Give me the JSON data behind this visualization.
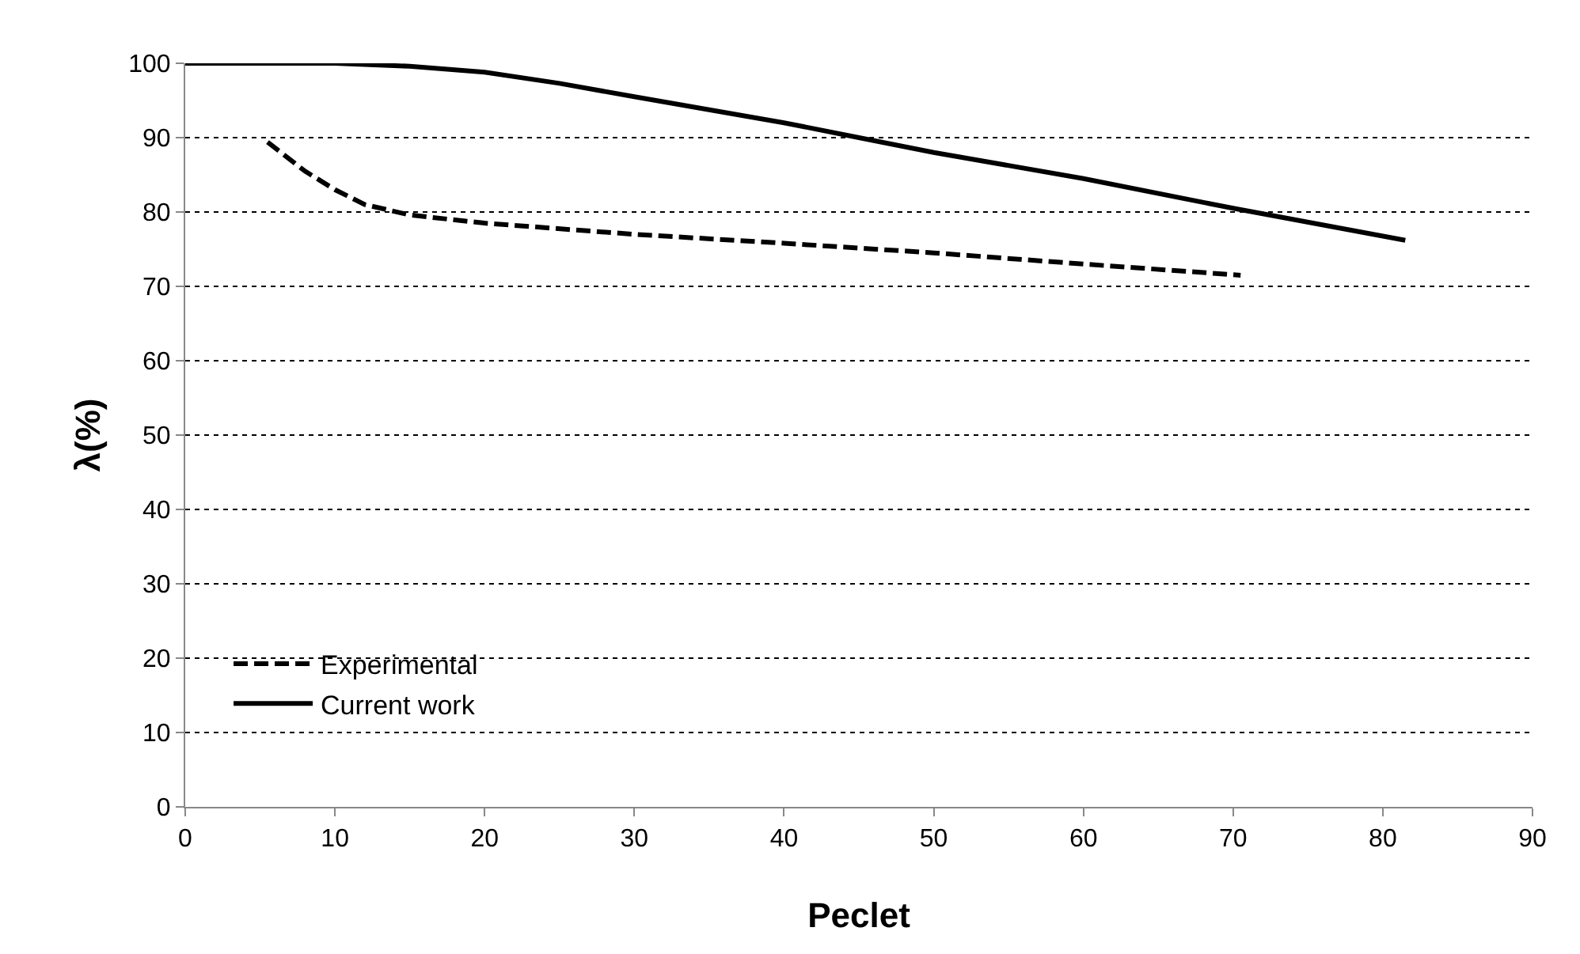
{
  "chart_data": {
    "type": "line",
    "xlabel": "Peclet",
    "ylabel": "λ(%)",
    "xlim": [
      0,
      90
    ],
    "xticks": [
      0,
      10,
      20,
      30,
      40,
      50,
      60,
      70,
      80,
      90
    ],
    "ylim": [
      0,
      100
    ],
    "yticks": [
      0,
      10,
      20,
      30,
      40,
      50,
      60,
      70,
      80,
      90,
      100
    ],
    "grid": "y",
    "legend": "bottom left",
    "marker": "none",
    "series": [
      {
        "name": "Experimental",
        "color": "#000000",
        "line_style": "dashed",
        "x": [
          5.5,
          8,
          10,
          12,
          15,
          20,
          30,
          40,
          50,
          60,
          70.5
        ],
        "values": [
          89.4,
          85.5,
          83,
          81,
          79.6,
          78.5,
          77,
          75.8,
          74.5,
          73,
          71.5
        ]
      },
      {
        "name": "Current work",
        "color": "#000000",
        "line_style": "solid",
        "x": [
          0,
          10,
          15,
          20,
          25,
          30,
          40,
          45,
          50,
          60,
          70,
          81.5
        ],
        "values": [
          100,
          100,
          99.6,
          98.8,
          97.3,
          95.5,
          92,
          90,
          88,
          84.5,
          80.5,
          76.2
        ]
      }
    ]
  }
}
